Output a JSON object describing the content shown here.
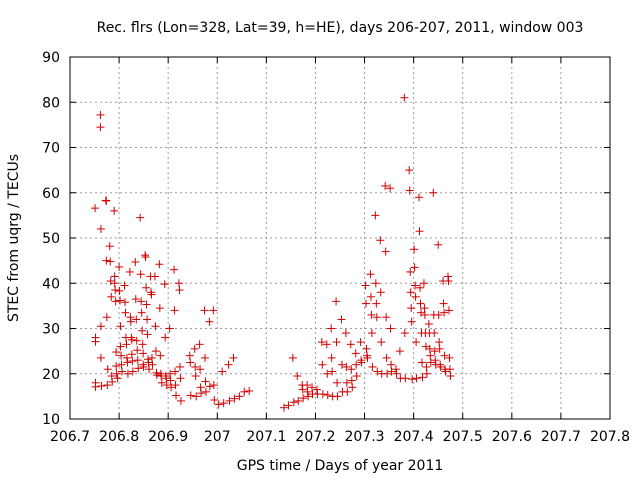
{
  "chart_data": {
    "type": "scatter",
    "title": "Rec. flrs (Lon=328, Lat=39, h=HE), days 206-207, 2011, window 003",
    "xlabel": "GPS time / Days of year 2011",
    "ylabel": "STEC from uqrg / TECUs",
    "xlim": [
      206.7,
      207.8
    ],
    "ylim": [
      10,
      90
    ],
    "xticks": [
      206.7,
      206.8,
      206.9,
      207.0,
      207.1,
      207.2,
      207.3,
      207.4,
      207.5,
      207.6,
      207.7,
      207.8
    ],
    "xtick_labels": [
      "206.7",
      "206.8",
      "206.9",
      "207",
      "207.1",
      "207.2",
      "207.3",
      "207.4",
      "207.5",
      "207.6",
      "207.7",
      "207.8"
    ],
    "yticks": [
      10,
      20,
      30,
      40,
      50,
      60,
      70,
      80,
      90
    ],
    "ytick_labels": [
      "10",
      "20",
      "30",
      "40",
      "50",
      "60",
      "70",
      "80",
      "90"
    ],
    "grid": true,
    "marker": "+",
    "marker_color": "#d00000",
    "series": [
      {
        "points": [
          [
            206.751,
            56.6
          ],
          [
            206.752,
            28.0
          ],
          [
            206.752,
            27.1
          ],
          [
            206.752,
            18.0
          ],
          [
            206.752,
            17.1
          ],
          [
            206.762,
            77.2
          ],
          [
            206.762,
            74.5
          ],
          [
            206.763,
            52.0
          ],
          [
            206.763,
            30.5
          ],
          [
            206.763,
            23.5
          ],
          [
            206.764,
            17.3
          ],
          [
            206.773,
            58.3
          ],
          [
            206.774,
            58.2
          ],
          [
            206.774,
            45.0
          ],
          [
            206.775,
            32.5
          ],
          [
            206.776,
            17.5
          ],
          [
            206.777,
            21.0
          ],
          [
            206.781,
            48.2
          ],
          [
            206.782,
            44.8
          ],
          [
            206.783,
            40.5
          ],
          [
            206.784,
            37.0
          ],
          [
            206.785,
            19.5
          ],
          [
            206.786,
            18.2
          ],
          [
            206.79,
            56.0
          ],
          [
            206.791,
            41.5
          ],
          [
            206.791,
            40.0
          ],
          [
            206.792,
            38.5
          ],
          [
            206.793,
            36.0
          ],
          [
            206.794,
            24.8
          ],
          [
            206.794,
            21.7
          ],
          [
            206.795,
            20.0
          ],
          [
            206.797,
            19.0
          ],
          [
            206.8,
            43.6
          ],
          [
            206.801,
            38.3
          ],
          [
            206.802,
            36.2
          ],
          [
            206.803,
            30.5
          ],
          [
            206.803,
            26.0
          ],
          [
            206.804,
            24.0
          ],
          [
            206.805,
            22.0
          ],
          [
            206.806,
            20.5
          ],
          [
            206.811,
            39.5
          ],
          [
            206.812,
            35.8
          ],
          [
            206.813,
            33.5
          ],
          [
            206.814,
            28.0
          ],
          [
            206.815,
            26.5
          ],
          [
            206.816,
            23.5
          ],
          [
            206.817,
            22.5
          ],
          [
            206.818,
            20.0
          ],
          [
            206.822,
            42.5
          ],
          [
            206.823,
            32.5
          ],
          [
            206.824,
            31.5
          ],
          [
            206.825,
            28.0
          ],
          [
            206.826,
            27.5
          ],
          [
            206.826,
            24.3
          ],
          [
            206.827,
            22.8
          ],
          [
            206.828,
            20.5
          ],
          [
            206.833,
            44.7
          ],
          [
            206.834,
            36.5
          ],
          [
            206.835,
            32.0
          ],
          [
            206.836,
            27.3
          ],
          [
            206.837,
            25.2
          ],
          [
            206.838,
            23.0
          ],
          [
            206.839,
            21.2
          ],
          [
            206.843,
            54.5
          ],
          [
            206.844,
            42.0
          ],
          [
            206.845,
            36.0
          ],
          [
            206.846,
            33.5
          ],
          [
            206.847,
            29.5
          ],
          [
            206.848,
            26.5
          ],
          [
            206.849,
            24.5
          ],
          [
            206.849,
            22.0
          ],
          [
            206.85,
            21.5
          ],
          [
            206.853,
            46.2
          ],
          [
            206.854,
            45.8
          ],
          [
            206.855,
            39.0
          ],
          [
            206.856,
            35.3
          ],
          [
            206.857,
            32.0
          ],
          [
            206.858,
            28.7
          ],
          [
            206.859,
            23.2
          ],
          [
            206.86,
            22.5
          ],
          [
            206.861,
            21.0
          ],
          [
            206.864,
            41.5
          ],
          [
            206.865,
            38.0
          ],
          [
            206.866,
            37.5
          ],
          [
            206.867,
            23.5
          ],
          [
            206.868,
            22.0
          ],
          [
            206.873,
            41.5
          ],
          [
            206.874,
            30.5
          ],
          [
            206.875,
            25.0
          ],
          [
            206.876,
            20.2
          ],
          [
            206.877,
            19.7
          ],
          [
            206.882,
            44.2
          ],
          [
            206.883,
            34.5
          ],
          [
            206.884,
            24.0
          ],
          [
            206.885,
            20.0
          ],
          [
            206.886,
            19.5
          ],
          [
            206.887,
            18.0
          ],
          [
            206.893,
            39.8
          ],
          [
            206.894,
            28.0
          ],
          [
            206.895,
            19.5
          ],
          [
            206.896,
            19.0
          ],
          [
            206.897,
            17.5
          ],
          [
            206.903,
            30.0
          ],
          [
            206.904,
            20.0
          ],
          [
            206.905,
            18.5
          ],
          [
            206.906,
            17.0
          ],
          [
            206.912,
            43.0
          ],
          [
            206.913,
            34.0
          ],
          [
            206.914,
            20.5
          ],
          [
            206.915,
            17.5
          ],
          [
            206.916,
            15.2
          ],
          [
            206.922,
            40.0
          ],
          [
            206.923,
            38.5
          ],
          [
            206.924,
            21.5
          ],
          [
            206.925,
            19.0
          ],
          [
            206.926,
            14.0
          ],
          [
            206.944,
            24.0
          ],
          [
            206.945,
            22.5
          ],
          [
            206.946,
            15.2
          ],
          [
            206.954,
            25.5
          ],
          [
            206.955,
            21.5
          ],
          [
            206.956,
            19.5
          ],
          [
            206.957,
            15.0
          ],
          [
            206.964,
            26.5
          ],
          [
            206.965,
            21.0
          ],
          [
            206.966,
            17.0
          ],
          [
            206.967,
            15.7
          ],
          [
            206.974,
            34.0
          ],
          [
            206.975,
            23.5
          ],
          [
            206.976,
            18.3
          ],
          [
            206.977,
            16.0
          ],
          [
            206.984,
            31.5
          ],
          [
            206.985,
            17.2
          ],
          [
            206.992,
            34.0
          ],
          [
            206.993,
            17.5
          ],
          [
            206.994,
            14.2
          ],
          [
            207.003,
            13.2
          ],
          [
            207.01,
            20.5
          ],
          [
            207.013,
            13.5
          ],
          [
            207.023,
            22.0
          ],
          [
            207.025,
            14.0
          ],
          [
            207.033,
            23.5
          ],
          [
            207.035,
            14.5
          ],
          [
            207.045,
            15.0
          ],
          [
            207.055,
            16.0
          ],
          [
            207.065,
            16.2
          ],
          [
            207.136,
            12.5
          ],
          [
            207.145,
            13.0
          ],
          [
            207.154,
            23.5
          ],
          [
            207.156,
            13.7
          ],
          [
            207.163,
            19.5
          ],
          [
            207.165,
            14.0
          ],
          [
            207.173,
            17.5
          ],
          [
            207.174,
            16.5
          ],
          [
            207.175,
            14.6
          ],
          [
            207.183,
            17.5
          ],
          [
            207.184,
            16.0
          ],
          [
            207.185,
            15.0
          ],
          [
            207.193,
            17.0
          ],
          [
            207.194,
            15.5
          ],
          [
            207.203,
            16.5
          ],
          [
            207.204,
            15.5
          ],
          [
            207.213,
            27.0
          ],
          [
            207.214,
            22.0
          ],
          [
            207.215,
            15.5
          ],
          [
            207.223,
            26.5
          ],
          [
            207.224,
            20.0
          ],
          [
            207.225,
            15.3
          ],
          [
            207.232,
            30.0
          ],
          [
            207.233,
            23.5
          ],
          [
            207.234,
            20.5
          ],
          [
            207.235,
            15.0
          ],
          [
            207.242,
            36.0
          ],
          [
            207.243,
            27.0
          ],
          [
            207.244,
            18.0
          ],
          [
            207.245,
            15.0
          ],
          [
            207.253,
            32.0
          ],
          [
            207.254,
            22.0
          ],
          [
            207.255,
            16.0
          ],
          [
            207.262,
            29.0
          ],
          [
            207.263,
            21.5
          ],
          [
            207.264,
            18.0
          ],
          [
            207.265,
            16.0
          ],
          [
            207.272,
            26.5
          ],
          [
            207.273,
            21.0
          ],
          [
            207.274,
            18.5
          ],
          [
            207.275,
            17.0
          ],
          [
            207.282,
            24.5
          ],
          [
            207.283,
            22.0
          ],
          [
            207.284,
            19.5
          ],
          [
            207.292,
            27.0
          ],
          [
            207.293,
            23.0
          ],
          [
            207.294,
            22.5
          ],
          [
            207.302,
            39.5
          ],
          [
            207.303,
            35.5
          ],
          [
            207.304,
            25.5
          ],
          [
            207.305,
            24.0
          ],
          [
            207.306,
            23.5
          ],
          [
            207.312,
            42.0
          ],
          [
            207.313,
            37.0
          ],
          [
            207.314,
            33.0
          ],
          [
            207.315,
            29.0
          ],
          [
            207.316,
            21.5
          ],
          [
            207.322,
            55.0
          ],
          [
            207.323,
            40.0
          ],
          [
            207.324,
            35.5
          ],
          [
            207.325,
            32.5
          ],
          [
            207.326,
            20.5
          ],
          [
            207.332,
            49.5
          ],
          [
            207.333,
            38.0
          ],
          [
            207.334,
            27.0
          ],
          [
            207.335,
            20.0
          ],
          [
            207.342,
            61.5
          ],
          [
            207.343,
            47.0
          ],
          [
            207.344,
            32.5
          ],
          [
            207.345,
            23.5
          ],
          [
            207.346,
            20.0
          ],
          [
            207.352,
            61.0
          ],
          [
            207.353,
            30.0
          ],
          [
            207.354,
            22.0
          ],
          [
            207.355,
            20.5
          ],
          [
            207.364,
            21.0
          ],
          [
            207.365,
            20.0
          ],
          [
            207.372,
            25.0
          ],
          [
            207.373,
            19.0
          ],
          [
            207.381,
            81.0
          ],
          [
            207.382,
            29.0
          ],
          [
            207.383,
            19.0
          ],
          [
            207.391,
            65.0
          ],
          [
            207.392,
            60.5
          ],
          [
            207.393,
            42.5
          ],
          [
            207.394,
            38.0
          ],
          [
            207.395,
            34.5
          ],
          [
            207.396,
            31.5
          ],
          [
            207.397,
            18.8
          ],
          [
            207.401,
            47.5
          ],
          [
            207.402,
            43.5
          ],
          [
            207.403,
            39.5
          ],
          [
            207.404,
            37.0
          ],
          [
            207.405,
            27.0
          ],
          [
            207.406,
            19.0
          ],
          [
            207.411,
            59.0
          ],
          [
            207.412,
            51.5
          ],
          [
            207.413,
            39.0
          ],
          [
            207.414,
            35.5
          ],
          [
            207.415,
            33.5
          ],
          [
            207.416,
            29.0
          ],
          [
            207.417,
            22.5
          ],
          [
            207.418,
            19.2
          ],
          [
            207.421,
            40.0
          ],
          [
            207.422,
            34.5
          ],
          [
            207.423,
            33.0
          ],
          [
            207.424,
            29.0
          ],
          [
            207.425,
            26.0
          ],
          [
            207.426,
            21.5
          ],
          [
            207.427,
            20.0
          ],
          [
            207.431,
            31.0
          ],
          [
            207.432,
            29.0
          ],
          [
            207.433,
            25.5
          ],
          [
            207.434,
            24.0
          ],
          [
            207.435,
            22.5
          ],
          [
            207.44,
            60.0
          ],
          [
            207.441,
            33.0
          ],
          [
            207.442,
            29.0
          ],
          [
            207.443,
            25.0
          ],
          [
            207.444,
            23.0
          ],
          [
            207.445,
            22.0
          ],
          [
            207.45,
            48.5
          ],
          [
            207.451,
            33.0
          ],
          [
            207.452,
            27.0
          ],
          [
            207.453,
            25.5
          ],
          [
            207.454,
            22.0
          ],
          [
            207.455,
            21.5
          ],
          [
            207.46,
            40.5
          ],
          [
            207.461,
            35.5
          ],
          [
            207.462,
            33.5
          ],
          [
            207.463,
            24.0
          ],
          [
            207.464,
            21.0
          ],
          [
            207.465,
            20.5
          ],
          [
            207.47,
            41.5
          ],
          [
            207.471,
            40.5
          ],
          [
            207.472,
            34.0
          ],
          [
            207.473,
            23.5
          ],
          [
            207.474,
            21.0
          ],
          [
            207.475,
            19.5
          ]
        ]
      }
    ]
  }
}
